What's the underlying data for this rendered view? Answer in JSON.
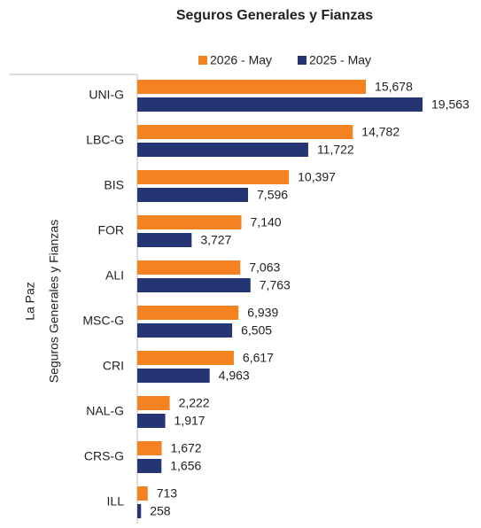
{
  "chart_data": {
    "type": "bar",
    "orientation": "horizontal",
    "title": "Seguros Generales y Fianzas",
    "row_labels": [
      "La Paz",
      "Seguros Generales y Fianzas"
    ],
    "categories": [
      "UNI-G",
      "LBC-G",
      "BIS",
      "FOR",
      "ALI",
      "MSC-G",
      "CRI",
      "NAL-G",
      "CRS-G",
      "ILL"
    ],
    "series": [
      {
        "name": "2026 - May",
        "color": "#f58220",
        "values": [
          15678,
          14782,
          10397,
          7140,
          7063,
          6939,
          6617,
          2222,
          1672,
          713
        ],
        "value_labels": [
          "15,678",
          "14,782",
          "10,397",
          "7,140",
          "7,063",
          "6,939",
          "6,617",
          "2,222",
          "1,672",
          "713"
        ]
      },
      {
        "name": "2025 - May",
        "color": "#253574",
        "values": [
          19563,
          11722,
          7596,
          3727,
          7763,
          6505,
          4963,
          1917,
          1656,
          258
        ],
        "value_labels": [
          "19,563",
          "11,722",
          "7,596",
          "3,727",
          "7,763",
          "6,505",
          "4,963",
          "1,917",
          "1,656",
          "258"
        ]
      }
    ],
    "legend": "top"
  }
}
